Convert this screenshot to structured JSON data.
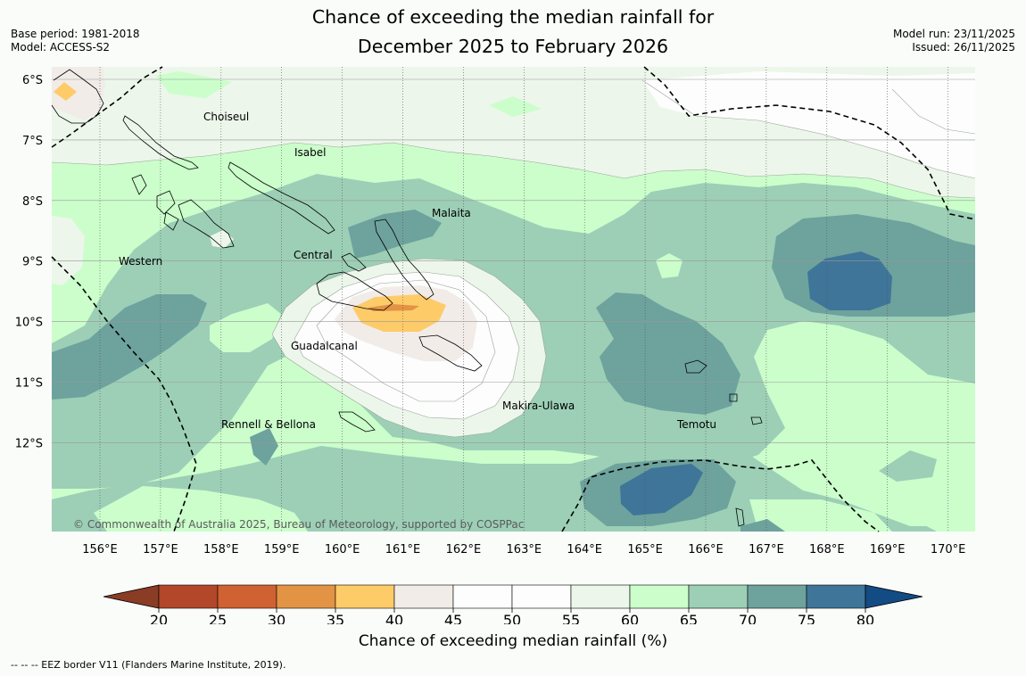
{
  "header": {
    "title_line1": "Chance of exceeding the median rainfall for",
    "title_line2": "December 2025 to February 2026",
    "base_period": "Base period: 1981-2018",
    "model": "Model: ACCESS-S2",
    "model_run": "Model run: 23/11/2025",
    "issued": "Issued: 26/11/2025"
  },
  "map": {
    "lat_labels": [
      "6°S",
      "7°S",
      "8°S",
      "9°S",
      "10°S",
      "11°S",
      "12°S"
    ],
    "lon_labels": [
      "156°E",
      "157°E",
      "158°E",
      "159°E",
      "160°E",
      "161°E",
      "162°E",
      "163°E",
      "164°E",
      "165°E",
      "166°E",
      "167°E",
      "168°E",
      "169°E",
      "170°E"
    ],
    "places": {
      "choiseul": "Choiseul",
      "isabel": "Isabel",
      "malaita": "Malaita",
      "western": "Western",
      "central": "Central",
      "guadalcanal": "Guadalcanal",
      "makira": "Makira-Ulawa",
      "temotu": "Temotu",
      "rennell": "Rennell & Bellona"
    },
    "copyright": "© Commonwealth of Australia 2025, Bureau of Meteorology, supported by COSPPac"
  },
  "colorbar": {
    "ticks": [
      "20",
      "25",
      "30",
      "35",
      "40",
      "45",
      "50",
      "55",
      "60",
      "65",
      "70",
      "75",
      "80"
    ],
    "colors": [
      "#b2472a",
      "#cf6132",
      "#e39344",
      "#fecb69",
      "#f1ece8",
      "#fcfdfc",
      "#fcfdfc",
      "#ecf6ea",
      "#cbfecb",
      "#9ccfb6",
      "#6ea29d",
      "#3f7599"
    ],
    "under_color": "#8a3c25",
    "over_color": "#134b85",
    "label": "Chance of exceeding median rainfall (%)"
  },
  "footnote": "--  --  -- EEZ border V11 (Flanders Marine Institute, 2019)."
}
